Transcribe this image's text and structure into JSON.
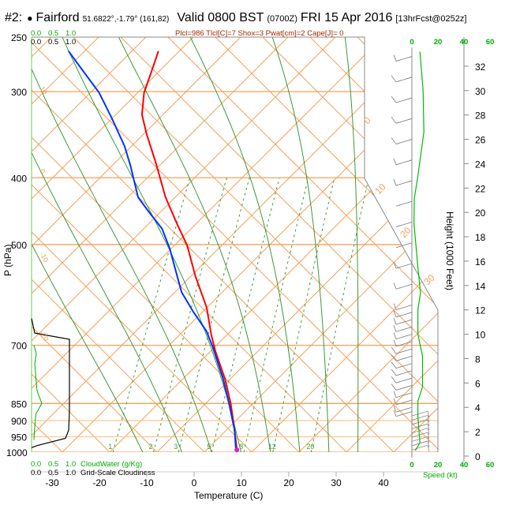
{
  "header": {
    "panel": "#2:",
    "station_bullet": "●",
    "station": "Fairford",
    "coords": "51.6822°,-1.79° (161,82)",
    "valid": "Valid 0800 BST",
    "zulu": "(0700Z)",
    "date": "FRI 15 Apr 2016",
    "forecast": "[13hrFcst@0252z]",
    "indices": "Plcl=986 Tlcl[C]=7 Shox=3 Pwat[cm]=2 Cape[J]= 0"
  },
  "colors": {
    "temperature": "#ff0000",
    "dewpoint": "#0033ff",
    "grid_orange": "#f7a05a",
    "moist_adiabat": "#3a9a3a",
    "mixing_ratio": "#3aa03a",
    "cloudwater": "#00aa00",
    "cloudiness": "#000000",
    "wind_speed": "#00bb00",
    "label_green": "#00aa00",
    "indices": "#a02800"
  },
  "chart_data": {
    "type": "line",
    "title": "Skew-T sounding",
    "xlabel": "Temperature (C)",
    "ylabel": "P (hPa)",
    "right_ylabel": "Height (1000 Feet)",
    "pressure_ticks": [
      "250",
      "300",
      "400",
      "500",
      "700",
      "850",
      "900",
      "950",
      "1000"
    ],
    "temperature_ticks": [
      "-30",
      "-20",
      "-10",
      "0",
      "10",
      "20",
      "30",
      "40"
    ],
    "height_ticks": [
      "0",
      "2",
      "4",
      "6",
      "8",
      "10",
      "12",
      "14",
      "16",
      "18",
      "20",
      "22",
      "24",
      "26",
      "28",
      "30",
      "32"
    ],
    "speed_ticks": [
      "0",
      "20",
      "40",
      "60"
    ],
    "speed_label": "Speed (kt)",
    "cloud_scale_top_green": [
      "0.0",
      "0.5",
      "1.0"
    ],
    "cloud_scale_top_black": [
      "0.0",
      "0.5",
      "1.0"
    ],
    "cloud_scale_bottom_green": [
      "0.0",
      "0.5",
      "1.0"
    ],
    "cloud_scale_bottom_black": [
      "0.0",
      "0.5",
      "1.0"
    ],
    "cloudwater_label": "CloudWater (g/Kg)",
    "cloudiness_label": "Grid-Scale Cloudiness",
    "adiabat_labels_left": [
      "10",
      "0",
      "-10",
      "-20"
    ],
    "isotherm_labels_right": [
      "0",
      "10",
      "20",
      "30"
    ],
    "mixing_ratio_labels": [
      "1",
      "2",
      "3",
      "5",
      "8",
      "12",
      "20"
    ],
    "series": [
      {
        "name": "Temperature",
        "unit": "C",
        "points": [
          [
            262,
            -46.5
          ],
          [
            280,
            -46
          ],
          [
            301,
            -45.5
          ],
          [
            324,
            -43.8
          ],
          [
            346,
            -40.9
          ],
          [
            379,
            -36.4
          ],
          [
            427,
            -30.8
          ],
          [
            468,
            -25.6
          ],
          [
            501,
            -21.6
          ],
          [
            556,
            -16.8
          ],
          [
            617,
            -11.4
          ],
          [
            677,
            -7.7
          ],
          [
            714,
            -5.3
          ],
          [
            783,
            -0.6
          ],
          [
            850,
            3.0
          ],
          [
            929,
            6.4
          ],
          [
            992,
            8.8
          ]
        ]
      },
      {
        "name": "Dewpoint",
        "unit": "C",
        "points": [
          [
            262,
            -65.5
          ],
          [
            280,
            -60.5
          ],
          [
            301,
            -55
          ],
          [
            328,
            -49.8
          ],
          [
            360,
            -44.4
          ],
          [
            384,
            -41.3
          ],
          [
            427,
            -36.6
          ],
          [
            450,
            -32.6
          ],
          [
            474,
            -28.5
          ],
          [
            507,
            -24.9
          ],
          [
            541,
            -21.9
          ],
          [
            586,
            -18.2
          ],
          [
            626,
            -13.8
          ],
          [
            668,
            -9.1
          ],
          [
            705,
            -6.2
          ],
          [
            783,
            -1.0
          ],
          [
            847,
            2.5
          ],
          [
            929,
            6.4
          ],
          [
            992,
            8.6
          ]
        ]
      },
      {
        "name": "Grid-Scale Cloudiness",
        "unit": "fraction",
        "points": [
          [
            640,
            0
          ],
          [
            672,
            0.08
          ],
          [
            686,
            0.96
          ],
          [
            870,
            0.96
          ],
          [
            929,
            0.94
          ],
          [
            955,
            0.86
          ],
          [
            978,
            0.15
          ],
          [
            985,
            0
          ]
        ]
      },
      {
        "name": "CloudWater",
        "unit": "g/Kg",
        "points": [
          [
            700,
            0
          ],
          [
            720,
            0.06
          ],
          [
            745,
            0.02
          ],
          [
            780,
            0.05
          ],
          [
            815,
            0.08
          ],
          [
            850,
            0.2
          ],
          [
            880,
            0.05
          ],
          [
            920,
            0.02
          ],
          [
            960,
            0
          ]
        ]
      },
      {
        "name": "Wind Speed",
        "unit": "kt",
        "x_is": "height_kft",
        "points": [
          [
            33.2,
            6.2
          ],
          [
            30.0,
            8.6
          ],
          [
            26.6,
            9.2
          ],
          [
            23.0,
            4.6
          ],
          [
            21.1,
            1.8
          ],
          [
            19.1,
            1.6
          ],
          [
            15.5,
            4.6
          ],
          [
            13.4,
            6.6
          ],
          [
            12.0,
            4.6
          ],
          [
            10.0,
            4.6
          ],
          [
            8.2,
            8.2
          ],
          [
            5.7,
            8.2
          ],
          [
            4.5,
            4.6
          ],
          [
            3.2,
            4.6
          ],
          [
            1.1,
            6.2
          ],
          [
            0.45,
            2.6
          ]
        ]
      }
    ],
    "ylim": [
      1000,
      250
    ],
    "xlim": [
      -35,
      45
    ],
    "grid": true
  }
}
